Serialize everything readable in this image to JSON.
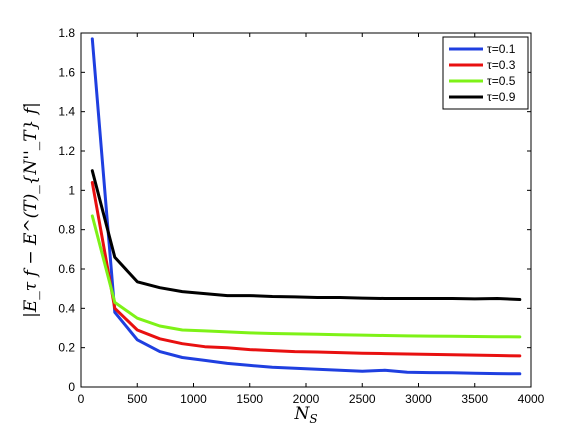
{
  "chart_data": {
    "type": "line",
    "title": "",
    "xlabel": "N_S",
    "ylabel": "|E_τ f − E^(T)_{N''_T} f|",
    "xlim": [
      0,
      4000
    ],
    "ylim": [
      0,
      1.8
    ],
    "x_ticks": [
      0,
      500,
      1000,
      1500,
      2000,
      2500,
      3000,
      3500,
      4000
    ],
    "x_tick_labels": [
      "0",
      "500",
      "1000",
      "1500",
      "2000",
      "2500",
      "3000",
      "3500",
      "4000"
    ],
    "y_ticks": [
      0,
      0.2,
      0.4,
      0.6,
      0.8,
      1,
      1.2,
      1.4,
      1.6,
      1.8
    ],
    "y_tick_labels": [
      "0",
      "0.2",
      "0.4",
      "0.6",
      "0.8",
      "1",
      "1.2",
      "1.4",
      "1.6",
      "1.8"
    ],
    "grid": false,
    "legend_position": "top-right",
    "x": [
      100,
      300,
      500,
      700,
      900,
      1100,
      1300,
      1500,
      1700,
      1900,
      2100,
      2300,
      2500,
      2700,
      2900,
      3100,
      3300,
      3500,
      3700,
      3900
    ],
    "series": [
      {
        "name": "τ=0.1",
        "color": "#1f3fe0",
        "values": [
          1.77,
          0.38,
          0.24,
          0.18,
          0.15,
          0.135,
          0.12,
          0.11,
          0.1,
          0.095,
          0.09,
          0.085,
          0.08,
          0.085,
          0.075,
          0.073,
          0.072,
          0.07,
          0.068,
          0.067
        ]
      },
      {
        "name": "τ=0.3",
        "color": "#e81010",
        "values": [
          1.04,
          0.4,
          0.29,
          0.245,
          0.22,
          0.205,
          0.2,
          0.19,
          0.185,
          0.18,
          0.178,
          0.175,
          0.172,
          0.17,
          0.168,
          0.166,
          0.164,
          0.162,
          0.16,
          0.158
        ]
      },
      {
        "name": "τ=0.5",
        "color": "#7ef217",
        "values": [
          0.87,
          0.43,
          0.35,
          0.31,
          0.29,
          0.285,
          0.28,
          0.275,
          0.272,
          0.27,
          0.268,
          0.266,
          0.264,
          0.262,
          0.26,
          0.259,
          0.258,
          0.257,
          0.256,
          0.255
        ]
      },
      {
        "name": "τ=0.9",
        "color": "#000000",
        "values": [
          1.1,
          0.66,
          0.535,
          0.505,
          0.485,
          0.475,
          0.465,
          0.465,
          0.46,
          0.458,
          0.455,
          0.455,
          0.452,
          0.45,
          0.45,
          0.45,
          0.45,
          0.448,
          0.45,
          0.445
        ]
      }
    ]
  }
}
